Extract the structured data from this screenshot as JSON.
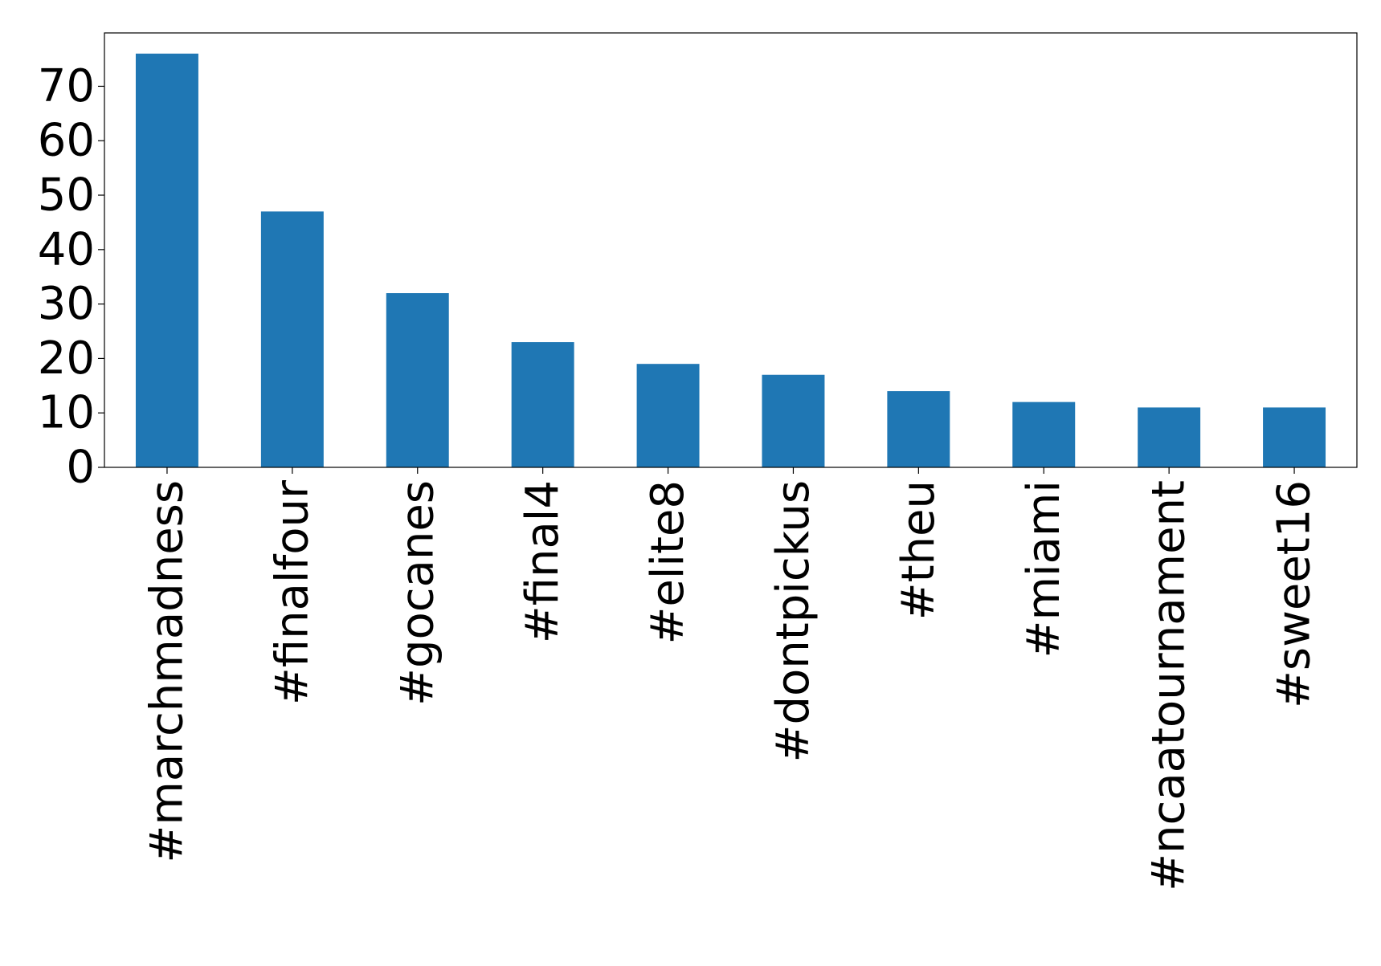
{
  "chart_data": {
    "type": "bar",
    "title": "",
    "xlabel": "",
    "ylabel": "",
    "categories": [
      "#marchmadness",
      "#finalfour",
      "#gocanes",
      "#final4",
      "#elite8",
      "#dontpickus",
      "#theu",
      "#miami",
      "#ncaatournament",
      "#sweet16"
    ],
    "values": [
      76,
      47,
      32,
      23,
      19,
      17,
      14,
      12,
      11,
      11
    ],
    "ylim": [
      0,
      79.8
    ],
    "yticks": [
      0,
      10,
      20,
      30,
      40,
      50,
      60,
      70
    ],
    "bar_color": "#1f77b4",
    "grid": false,
    "legend": "none"
  }
}
